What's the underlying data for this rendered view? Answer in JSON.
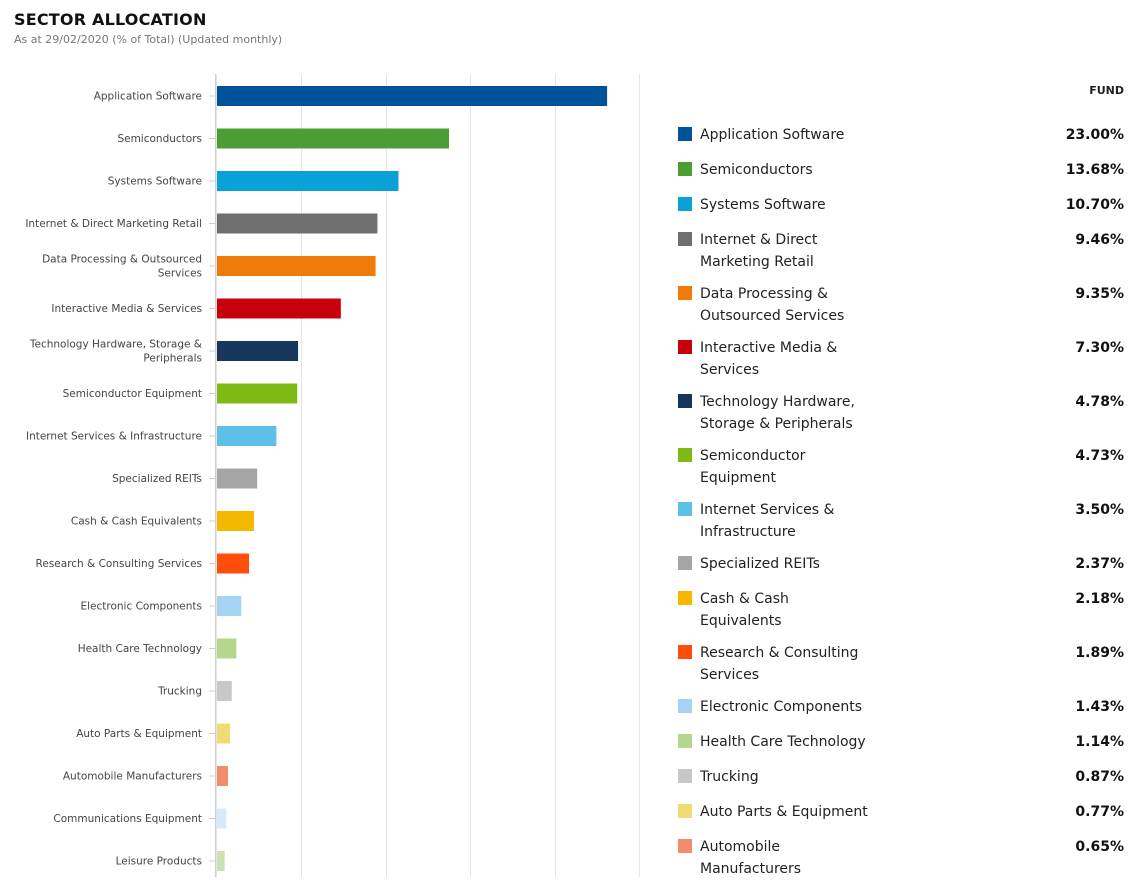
{
  "header": {
    "title": "SECTOR ALLOCATION",
    "subtitle": "As at 29/02/2020 (% of Total) (Updated monthly)"
  },
  "legend": {
    "column_header": "FUND"
  },
  "chart_data": {
    "type": "bar",
    "orientation": "horizontal",
    "title": "SECTOR ALLOCATION",
    "subtitle": "As at 29/02/2020 (% of Total) (Updated monthly)",
    "xlabel": "",
    "ylabel": "",
    "xlim": [
      0,
      25
    ],
    "grid": true,
    "categories": [
      "Application Software",
      "Semiconductors",
      "Systems Software",
      "Internet & Direct Marketing Retail",
      "Data Processing & Outsourced Services",
      "Interactive Media & Services",
      "Technology Hardware, Storage & Peripherals",
      "Semiconductor Equipment",
      "Internet Services & Infrastructure",
      "Specialized REITs",
      "Cash & Cash Equivalents",
      "Research & Consulting Services",
      "Electronic Components",
      "Health Care Technology",
      "Trucking",
      "Auto Parts & Equipment",
      "Automobile Manufacturers",
      "Communications Equipment",
      "Leisure Products"
    ],
    "axis_labels": [
      [
        "Application Software"
      ],
      [
        "Semiconductors"
      ],
      [
        "Systems Software"
      ],
      [
        "Internet & Direct Marketing Retail"
      ],
      [
        "Data Processing & Outsourced",
        "Services"
      ],
      [
        "Interactive Media & Services"
      ],
      [
        "Technology Hardware, Storage &",
        "Peripherals"
      ],
      [
        "Semiconductor Equipment"
      ],
      [
        "Internet Services & Infrastructure"
      ],
      [
        "Specialized REITs"
      ],
      [
        "Cash & Cash Equivalents"
      ],
      [
        "Research & Consulting Services"
      ],
      [
        "Electronic Components"
      ],
      [
        "Health Care Technology"
      ],
      [
        "Trucking"
      ],
      [
        "Auto Parts & Equipment"
      ],
      [
        "Automobile Manufacturers"
      ],
      [
        "Communications Equipment"
      ],
      [
        "Leisure Products"
      ]
    ],
    "values": [
      23.0,
      13.68,
      10.7,
      9.46,
      9.35,
      7.3,
      4.78,
      4.73,
      3.5,
      2.37,
      2.18,
      1.89,
      1.43,
      1.14,
      0.87,
      0.77,
      0.65,
      0.55,
      0.45
    ],
    "colors": [
      "#00539b",
      "#4c9e34",
      "#0aa0d8",
      "#6f6f6f",
      "#ef7b0b",
      "#c8000d",
      "#16365c",
      "#7fba14",
      "#5ebfe8",
      "#a5a5a5",
      "#f4b800",
      "#ff4e0b",
      "#a5d3f1",
      "#b4d78c",
      "#c8c8c8",
      "#f1dc73",
      "#f28d6c",
      "#d6eafa",
      "#c9e2b3"
    ],
    "legend_entries": [
      {
        "label": [
          "Application Software"
        ],
        "value": "23.00%",
        "color": "#00539b"
      },
      {
        "label": [
          "Semiconductors"
        ],
        "value": "13.68%",
        "color": "#4c9e34"
      },
      {
        "label": [
          "Systems Software"
        ],
        "value": "10.70%",
        "color": "#0aa0d8"
      },
      {
        "label": [
          "Internet & Direct",
          "Marketing Retail"
        ],
        "value": "9.46%",
        "color": "#6f6f6f"
      },
      {
        "label": [
          "Data Processing &",
          "Outsourced Services"
        ],
        "value": "9.35%",
        "color": "#ef7b0b"
      },
      {
        "label": [
          "Interactive Media &",
          "Services"
        ],
        "value": "7.30%",
        "color": "#c8000d"
      },
      {
        "label": [
          "Technology Hardware,",
          "Storage & Peripherals"
        ],
        "value": "4.78%",
        "color": "#16365c"
      },
      {
        "label": [
          "Semiconductor",
          "Equipment"
        ],
        "value": "4.73%",
        "color": "#7fba14"
      },
      {
        "label": [
          "Internet Services &",
          "Infrastructure"
        ],
        "value": "3.50%",
        "color": "#5ebfe8"
      },
      {
        "label": [
          "Specialized REITs"
        ],
        "value": "2.37%",
        "color": "#a5a5a5"
      },
      {
        "label": [
          "Cash & Cash",
          "Equivalents"
        ],
        "value": "2.18%",
        "color": "#f4b800"
      },
      {
        "label": [
          "Research & Consulting",
          "Services"
        ],
        "value": "1.89%",
        "color": "#ff4e0b"
      },
      {
        "label": [
          "Electronic Components"
        ],
        "value": "1.43%",
        "color": "#a5d3f1"
      },
      {
        "label": [
          "Health Care Technology"
        ],
        "value": "1.14%",
        "color": "#b4d78c"
      },
      {
        "label": [
          "Trucking"
        ],
        "value": "0.87%",
        "color": "#c8c8c8"
      },
      {
        "label": [
          "Auto Parts & Equipment"
        ],
        "value": "0.77%",
        "color": "#f1dc73"
      },
      {
        "label": [
          "Automobile",
          "Manufacturers"
        ],
        "value": "0.65%",
        "color": "#f28d6c"
      }
    ]
  }
}
